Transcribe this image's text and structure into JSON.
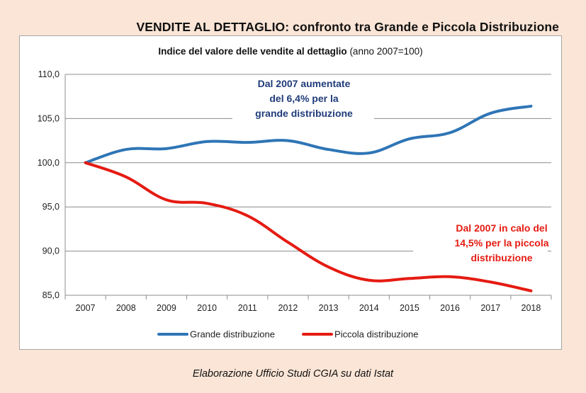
{
  "header": {
    "title": "VENDITE AL DETTAGLIO: confronto tra Grande e Piccola Distribuzione"
  },
  "chart_data": {
    "type": "line",
    "title": "Indice del valore delle vendite al dettaglio",
    "subtitle": "(anno 2007=100)",
    "x": [
      "2007",
      "2008",
      "2009",
      "2010",
      "2011",
      "2012",
      "2013",
      "2014",
      "2015",
      "2016",
      "2017",
      "2018"
    ],
    "ylim": [
      85,
      110
    ],
    "yticks": [
      "110,0",
      "105,0",
      "100,0",
      "95,0",
      "90,0",
      "85,0"
    ],
    "ytick_values": [
      110,
      105,
      100,
      95,
      90,
      85
    ],
    "grid": true,
    "legend_position": "bottom",
    "series": [
      {
        "name": "Grande distribuzione",
        "color": "#2e75b6",
        "values": [
          100.0,
          101.5,
          101.6,
          102.4,
          102.3,
          102.5,
          101.5,
          101.1,
          102.7,
          103.4,
          105.6,
          106.4
        ]
      },
      {
        "name": "Piccola distribuzione",
        "color": "#e51b12",
        "values": [
          100.0,
          98.4,
          95.8,
          95.4,
          94.0,
          91.0,
          88.2,
          86.7,
          86.9,
          87.1,
          86.5,
          85.5
        ]
      }
    ],
    "annotations": [
      {
        "lines": [
          "Dal 2007 aumentate",
          "del 6,4% per la",
          "grande distribuzione"
        ],
        "color": "#1f3b7a"
      },
      {
        "lines": [
          "Dal 2007 in calo del",
          "14,5% per la piccola",
          "distribuzione"
        ],
        "color": "#e51b12"
      }
    ]
  },
  "footer": {
    "source": "Elaborazione Ufficio Studi CGIA su dati Istat"
  }
}
